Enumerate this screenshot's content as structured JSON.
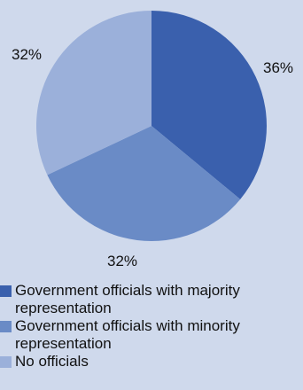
{
  "chart_data": {
    "type": "pie",
    "slices": [
      {
        "label": "Government officials with majority representation",
        "value": 36,
        "value_label": "36%",
        "color": "#3a60ad"
      },
      {
        "label": "Government officials with minority representation",
        "value": 32,
        "value_label": "32%",
        "color": "#6a8bc6"
      },
      {
        "label": "No officials",
        "value": 32,
        "value_label": "32%",
        "color": "#9bb0da"
      }
    ],
    "start_angle": "12 o'clock",
    "direction": "clockwise",
    "legend_position": "bottom"
  }
}
